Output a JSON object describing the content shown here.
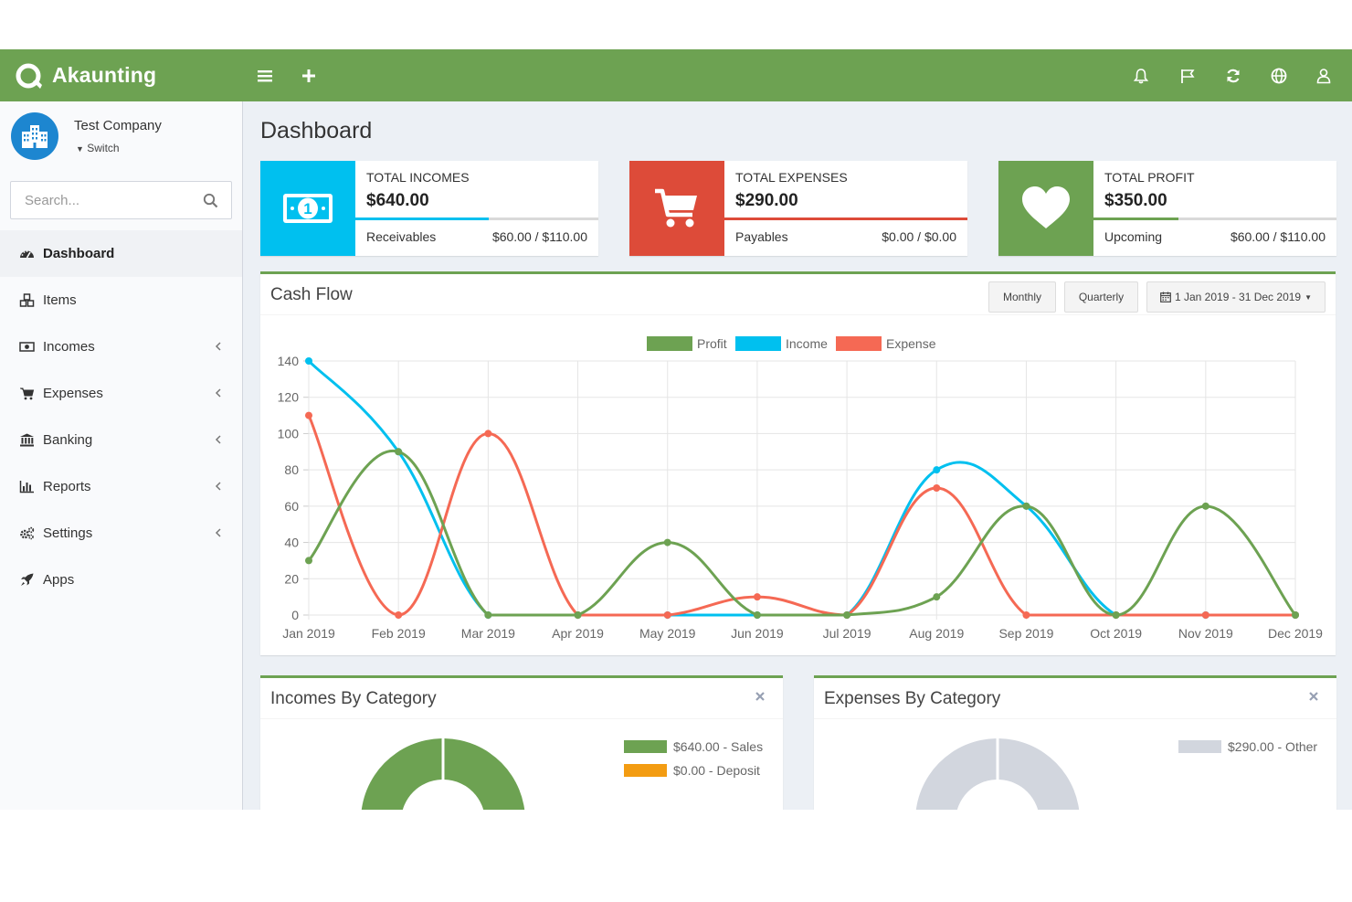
{
  "app": {
    "name": "Akaunting"
  },
  "topbar": {
    "icons": [
      "bars-icon",
      "plus-icon",
      "bell-icon",
      "flag-icon",
      "refresh-icon",
      "globe-icon",
      "user-icon"
    ]
  },
  "company": {
    "name": "Test Company",
    "switch_label": "Switch"
  },
  "search": {
    "placeholder": "Search..."
  },
  "sidebar": {
    "items": [
      {
        "label": "Dashboard",
        "icon": "tachometer-icon",
        "active": true,
        "has_children": false
      },
      {
        "label": "Items",
        "icon": "cubes-icon",
        "active": false,
        "has_children": false
      },
      {
        "label": "Incomes",
        "icon": "money-icon",
        "active": false,
        "has_children": true
      },
      {
        "label": "Expenses",
        "icon": "cart-icon",
        "active": false,
        "has_children": true
      },
      {
        "label": "Banking",
        "icon": "university-icon",
        "active": false,
        "has_children": true
      },
      {
        "label": "Reports",
        "icon": "bar-chart-icon",
        "active": false,
        "has_children": true
      },
      {
        "label": "Settings",
        "icon": "gears-icon",
        "active": false,
        "has_children": true
      },
      {
        "label": "Apps",
        "icon": "rocket-icon",
        "active": false,
        "has_children": false
      }
    ]
  },
  "page": {
    "title": "Dashboard"
  },
  "info_boxes": [
    {
      "label": "TOTAL INCOMES",
      "amount": "$640.00",
      "sub_label": "Receivables",
      "sub_value": "$60.00 / $110.00",
      "color": "#00c0ef",
      "icon": "money-bill-icon",
      "progress": 0.55
    },
    {
      "label": "TOTAL EXPENSES",
      "amount": "$290.00",
      "sub_label": "Payables",
      "sub_value": "$0.00 / $0.00",
      "color": "#dd4b39",
      "icon": "shopping-cart-icon",
      "progress": 1.0
    },
    {
      "label": "TOTAL PROFIT",
      "amount": "$350.00",
      "sub_label": "Upcoming",
      "sub_value": "$60.00 / $110.00",
      "color": "#6da252",
      "icon": "heart-icon",
      "progress": 0.35
    }
  ],
  "cash_flow": {
    "title": "Cash Flow",
    "buttons": {
      "monthly": "Monthly",
      "quarterly": "Quarterly",
      "range": "1 Jan 2019 - 31 Dec 2019"
    }
  },
  "chart_data": {
    "type": "line",
    "categories": [
      "Jan 2019",
      "Feb 2019",
      "Mar 2019",
      "Apr 2019",
      "May 2019",
      "Jun 2019",
      "Jul 2019",
      "Aug 2019",
      "Sep 2019",
      "Oct 2019",
      "Nov 2019",
      "Dec 2019"
    ],
    "series": [
      {
        "name": "Profit",
        "color": "#6da252",
        "values": [
          30,
          90,
          0,
          0,
          40,
          0,
          0,
          10,
          60,
          0,
          60,
          0
        ]
      },
      {
        "name": "Income",
        "color": "#00c0ef",
        "values": [
          140,
          90,
          0,
          0,
          0,
          0,
          0,
          80,
          60,
          0,
          0,
          0
        ]
      },
      {
        "name": "Expense",
        "color": "#f56954",
        "values": [
          110,
          0,
          100,
          0,
          0,
          10,
          0,
          70,
          0,
          0,
          0,
          0
        ]
      }
    ],
    "ylim": [
      0,
      140
    ],
    "yticks": [
      0,
      20,
      40,
      60,
      80,
      100,
      120,
      140
    ],
    "grid": true,
    "legend": "top-center"
  },
  "incomes_by_category": {
    "title": "Incomes By Category",
    "items": [
      {
        "label": "$640.00 - Sales",
        "color": "#6da252",
        "value": 640
      },
      {
        "label": "$0.00 - Deposit",
        "color": "#f39c12",
        "value": 0
      }
    ]
  },
  "expenses_by_category": {
    "title": "Expenses By Category",
    "items": [
      {
        "label": "$290.00 - Other",
        "color": "#d2d6de",
        "value": 290
      }
    ]
  }
}
